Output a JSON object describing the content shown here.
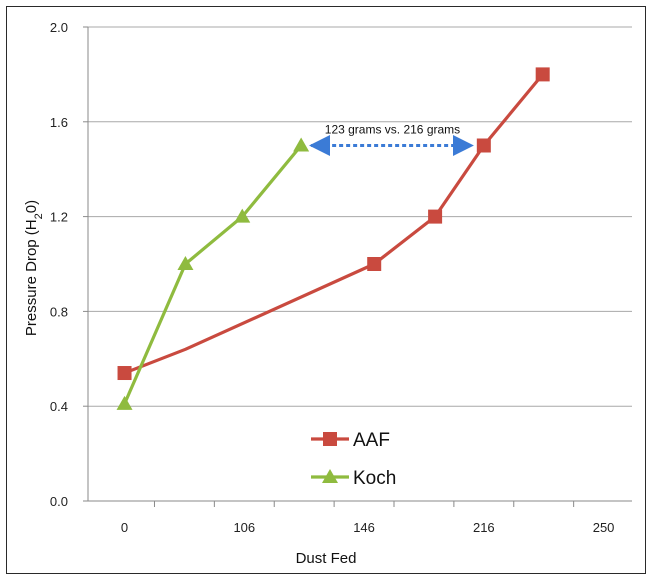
{
  "chart_data": {
    "type": "line",
    "title": "",
    "xlabel": "Dust Fed",
    "ylabel_main": "Pressure Drop (H",
    "ylabel_sub": "2",
    "ylabel_end": "0)",
    "xlim": [
      -18,
      250
    ],
    "ylim": [
      0.0,
      2.0
    ],
    "x_ticks": [
      {
        "label": "0",
        "pos": 0
      },
      {
        "label": "106",
        "pos": 59
      },
      {
        "label": "146",
        "pos": 118
      },
      {
        "label": "216",
        "pos": 177
      },
      {
        "label": "250",
        "pos": 236
      }
    ],
    "y_ticks": [
      "0.0",
      "0.4",
      "0.8",
      "1.2",
      "1.6",
      "2.0"
    ],
    "y_tick_values": [
      0.0,
      0.4,
      0.8,
      1.2,
      1.6,
      2.0
    ],
    "grid": true,
    "series": [
      {
        "name": "AAF",
        "color": "#c94a3f",
        "marker": "square",
        "points": [
          [
            0,
            0.54
          ],
          [
            123,
            1.0
          ],
          [
            153,
            1.2
          ],
          [
            177,
            1.5
          ],
          [
            206,
            1.8
          ]
        ],
        "marker_indices": [
          0,
          1,
          2,
          3,
          4
        ],
        "path_points": [
          [
            0,
            0.54
          ],
          [
            30,
            0.64
          ],
          [
            123,
            1.0
          ],
          [
            153,
            1.2
          ],
          [
            177,
            1.5
          ],
          [
            206,
            1.8
          ]
        ]
      },
      {
        "name": "Koch",
        "color": "#8fbb3f",
        "marker": "triangle",
        "points": [
          [
            0,
            0.41
          ],
          [
            30,
            1.0
          ],
          [
            58,
            1.2
          ],
          [
            87,
            1.5
          ]
        ],
        "marker_indices": [
          0,
          1,
          2,
          3
        ],
        "path_points": [
          [
            0,
            0.41
          ],
          [
            30,
            1.0
          ],
          [
            58,
            1.2
          ],
          [
            87,
            1.5
          ]
        ]
      }
    ],
    "annotation": {
      "text": "123 grams vs. 216 grams",
      "arrow_color": "#3b7bd6",
      "from": [
        87,
        1.5
      ],
      "to": [
        177,
        1.5
      ]
    },
    "legend_position": "bottom-center"
  }
}
